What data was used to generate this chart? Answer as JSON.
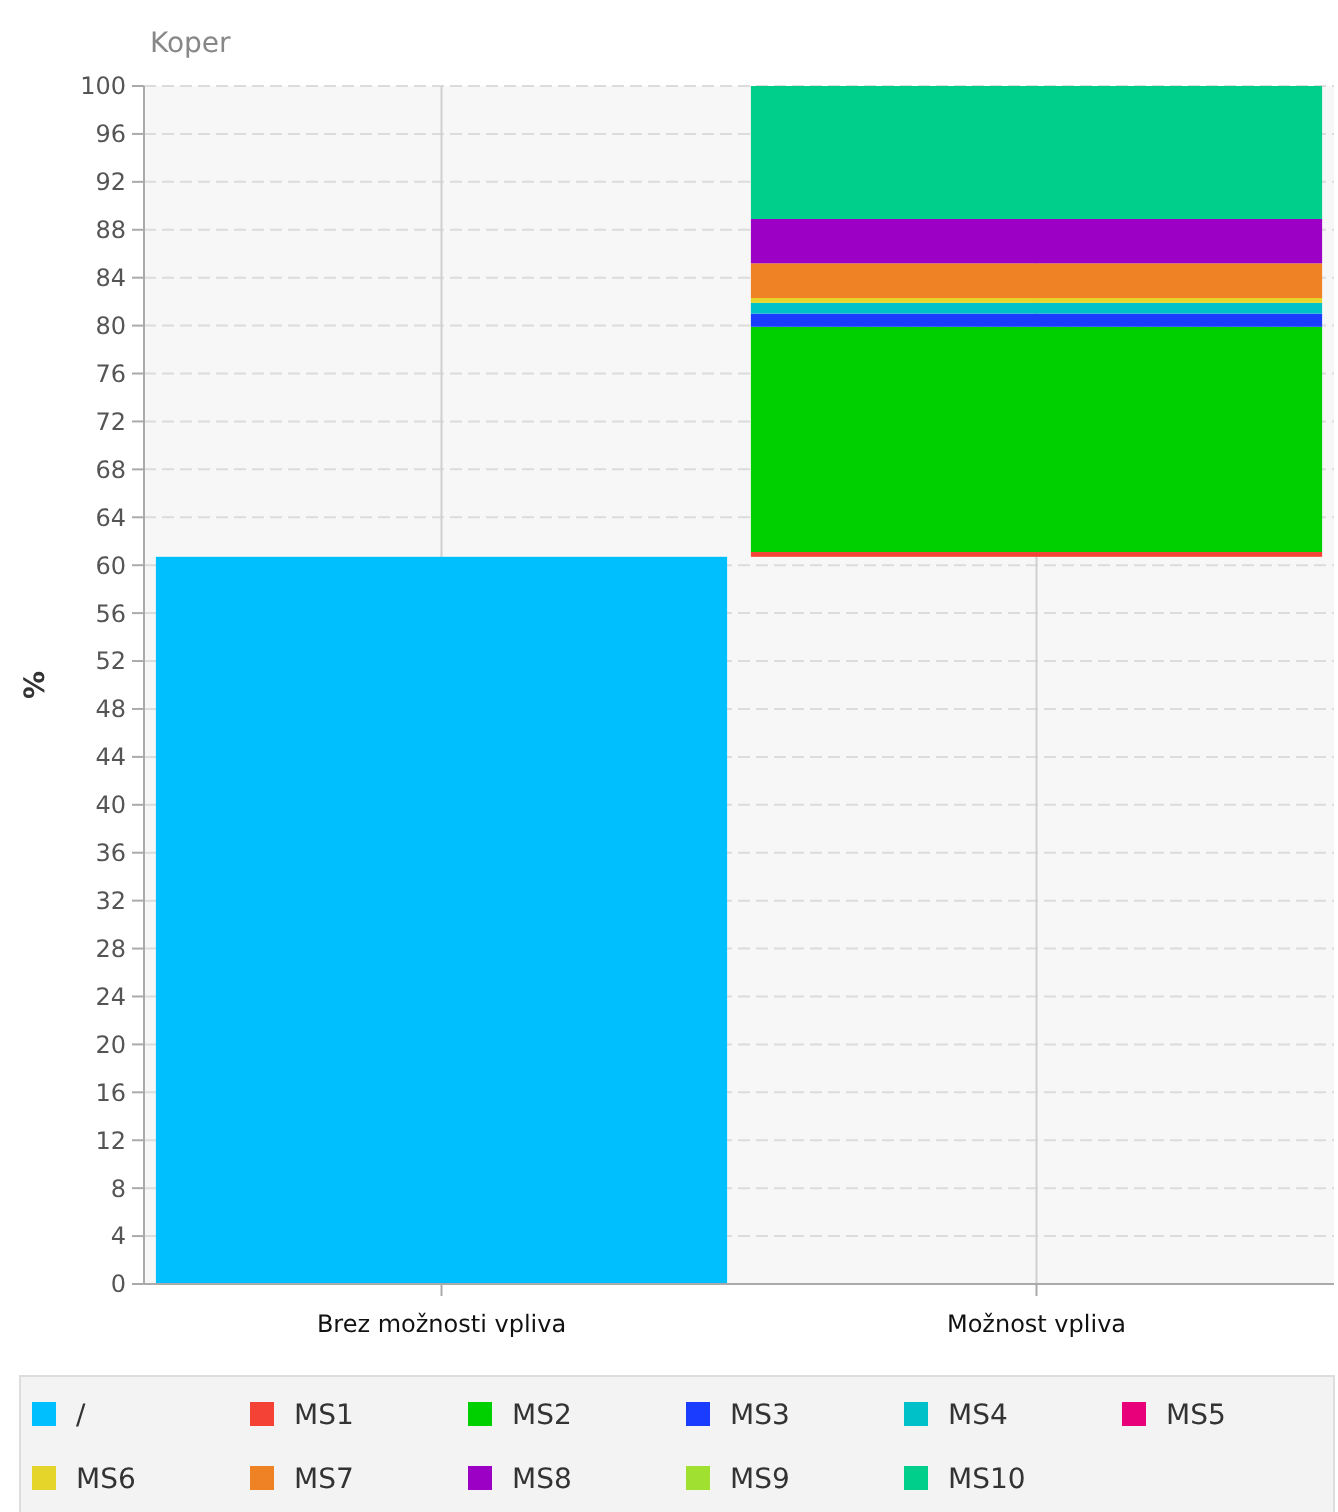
{
  "chart_data": {
    "type": "bar",
    "title": "Koper",
    "ylabel": "%",
    "categories": [
      "Brez možnosti vpliva",
      "Možnost vpliva"
    ],
    "series": [
      {
        "name": "/",
        "color": "#00bfff",
        "values": [
          60.7,
          null
        ],
        "base": [
          0,
          null
        ]
      },
      {
        "name": "MS1",
        "color": "#f44336",
        "values": [
          null,
          0.4
        ],
        "base": [
          null,
          60.7
        ]
      },
      {
        "name": "MS2",
        "color": "#00d000",
        "values": [
          null,
          18.8
        ],
        "base": [
          null,
          61.1
        ]
      },
      {
        "name": "MS3",
        "color": "#1a3cff",
        "values": [
          null,
          1.1
        ],
        "base": [
          null,
          79.9
        ]
      },
      {
        "name": "MS4",
        "color": "#00c0c8",
        "values": [
          null,
          0.9
        ],
        "base": [
          null,
          81
        ]
      },
      {
        "name": "MS5",
        "color": "#e8007a",
        "values": [
          null,
          null
        ]
      },
      {
        "name": "MS6",
        "color": "#e5d52a",
        "values": [
          null,
          0.4
        ],
        "base": [
          null,
          81.9
        ]
      },
      {
        "name": "MS7",
        "color": "#ee8225",
        "values": [
          null,
          2.9
        ],
        "base": [
          null,
          82.3
        ]
      },
      {
        "name": "MS8",
        "color": "#9b00c4",
        "values": [
          null,
          3.7
        ],
        "base": [
          null,
          85.2
        ]
      },
      {
        "name": "MS9",
        "color": "#a0e030",
        "values": [
          null,
          null
        ]
      },
      {
        "name": "MS10",
        "color": "#00cf8c",
        "values": [
          null,
          11.1
        ],
        "base": [
          null,
          88.9
        ]
      }
    ],
    "ylim": [
      0,
      100
    ],
    "yticks": [
      0,
      4,
      8,
      12,
      16,
      20,
      24,
      28,
      32,
      36,
      40,
      44,
      48,
      52,
      56,
      60,
      64,
      68,
      72,
      76,
      80,
      84,
      88,
      92,
      96,
      100
    ],
    "grid": true,
    "legend": "bottom"
  }
}
